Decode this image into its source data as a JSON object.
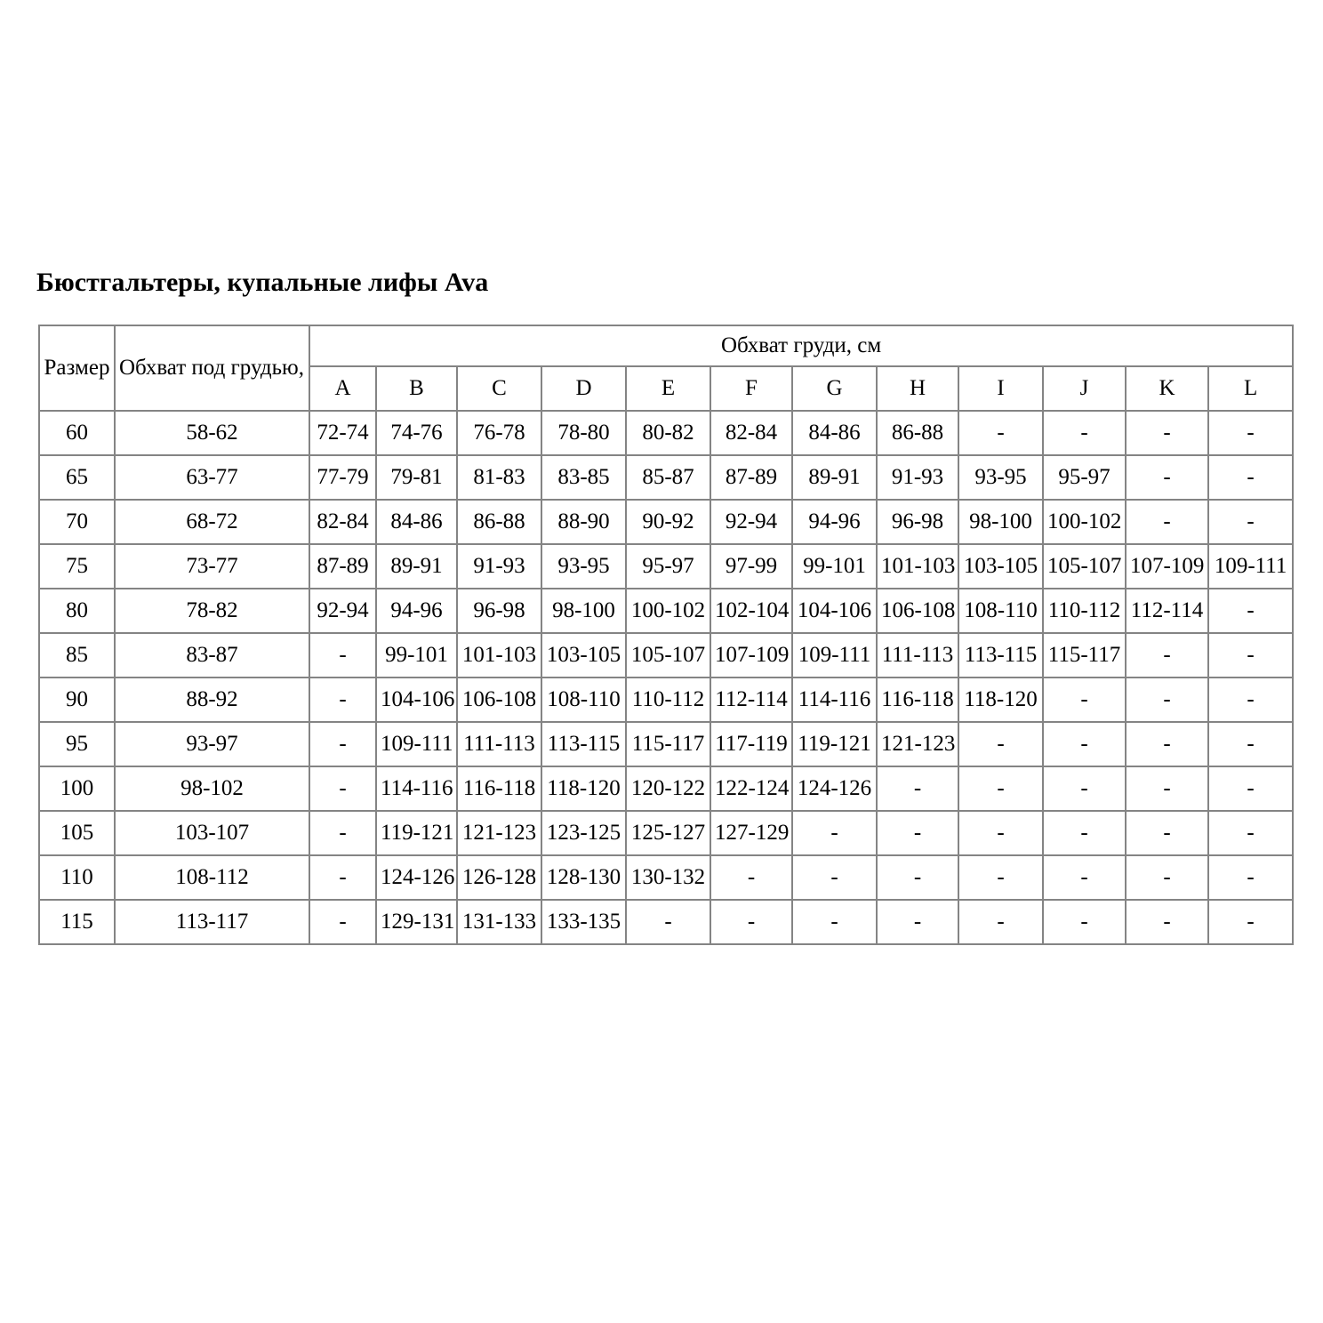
{
  "page": {
    "title": "Бюстгальтеры, купальные лифы Ava"
  },
  "table": {
    "header": {
      "size": "Размер",
      "underbust": "Обхват под грудью, см",
      "bust": "Обхват груди, см",
      "cups": [
        "A",
        "B",
        "C",
        "D",
        "E",
        "F",
        "G",
        "H",
        "I",
        "J",
        "K",
        "L"
      ]
    },
    "empty_marker": "-",
    "rows": [
      {
        "size": "60",
        "underbust": "58-62",
        "cups": [
          "72-74",
          "74-76",
          "76-78",
          "78-80",
          "80-82",
          "82-84",
          "84-86",
          "86-88",
          "-",
          "-",
          "-",
          "-"
        ]
      },
      {
        "size": "65",
        "underbust": "63-77",
        "cups": [
          "77-79",
          "79-81",
          "81-83",
          "83-85",
          "85-87",
          "87-89",
          "89-91",
          "91-93",
          "93-95",
          "95-97",
          "-",
          "-"
        ]
      },
      {
        "size": "70",
        "underbust": "68-72",
        "cups": [
          "82-84",
          "84-86",
          "86-88",
          "88-90",
          "90-92",
          "92-94",
          "94-96",
          "96-98",
          "98-100",
          "100-102",
          "-",
          "-"
        ]
      },
      {
        "size": "75",
        "underbust": "73-77",
        "cups": [
          "87-89",
          "89-91",
          "91-93",
          "93-95",
          "95-97",
          "97-99",
          "99-101",
          "101-103",
          "103-105",
          "105-107",
          "107-109",
          "109-111"
        ]
      },
      {
        "size": "80",
        "underbust": "78-82",
        "cups": [
          "92-94",
          "94-96",
          "96-98",
          "98-100",
          "100-102",
          "102-104",
          "104-106",
          "106-108",
          "108-110",
          "110-112",
          "112-114",
          "-"
        ]
      },
      {
        "size": "85",
        "underbust": "83-87",
        "cups": [
          "-",
          "99-101",
          "101-103",
          "103-105",
          "105-107",
          "107-109",
          "109-111",
          "111-113",
          "113-115",
          "115-117",
          "-",
          "-"
        ]
      },
      {
        "size": "90",
        "underbust": "88-92",
        "cups": [
          "-",
          "104-106",
          "106-108",
          "108-110",
          "110-112",
          "112-114",
          "114-116",
          "116-118",
          "118-120",
          "-",
          "-",
          "-"
        ]
      },
      {
        "size": "95",
        "underbust": "93-97",
        "cups": [
          "-",
          "109-111",
          "111-113",
          "113-115",
          "115-117",
          "117-119",
          "119-121",
          "121-123",
          "-",
          "-",
          "-",
          "-"
        ]
      },
      {
        "size": "100",
        "underbust": "98-102",
        "cups": [
          "-",
          "114-116",
          "116-118",
          "118-120",
          "120-122",
          "122-124",
          "124-126",
          "-",
          "-",
          "-",
          "-",
          "-"
        ]
      },
      {
        "size": "105",
        "underbust": "103-107",
        "cups": [
          "-",
          "119-121",
          "121-123",
          "123-125",
          "125-127",
          "127-129",
          "-",
          "-",
          "-",
          "-",
          "-",
          "-"
        ]
      },
      {
        "size": "110",
        "underbust": "108-112",
        "cups": [
          "-",
          "124-126",
          "126-128",
          "128-130",
          "130-132",
          "-",
          "-",
          "-",
          "-",
          "-",
          "-",
          "-"
        ]
      },
      {
        "size": "115",
        "underbust": "113-117",
        "cups": [
          "-",
          "129-131",
          "131-133",
          "133-135",
          "-",
          "-",
          "-",
          "-",
          "-",
          "-",
          "-",
          "-"
        ]
      }
    ]
  }
}
